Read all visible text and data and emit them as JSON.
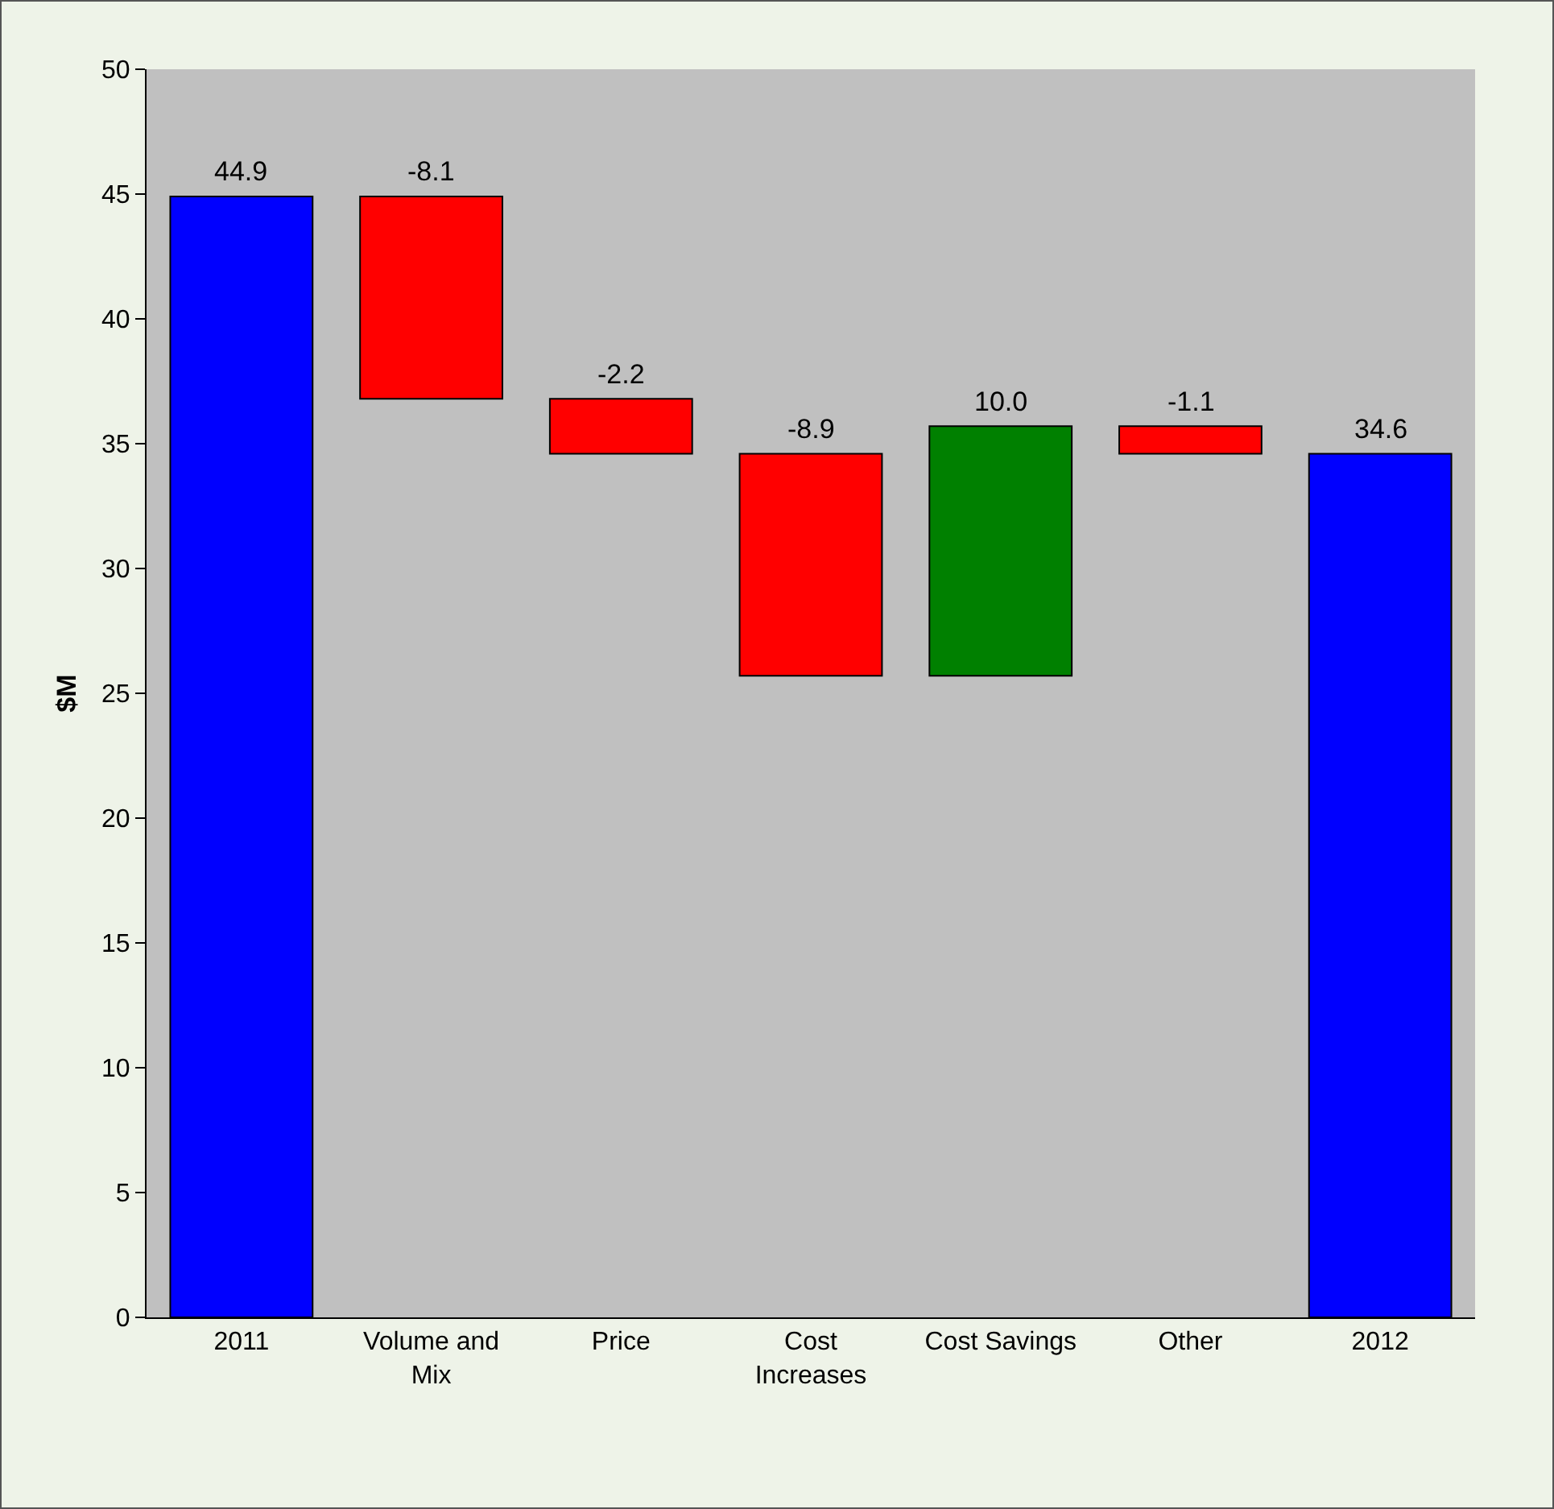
{
  "chart_data": {
    "type": "bar",
    "categories": [
      "2011",
      "Volume and Mix",
      "Price",
      "Cost Increases",
      "Cost Savings",
      "Other",
      "2012"
    ],
    "values": [
      44.9,
      -8.1,
      -2.2,
      -8.9,
      10.0,
      -1.1,
      34.6
    ],
    "base": [
      0,
      44.9,
      36.8,
      34.6,
      25.7,
      35.7,
      0
    ],
    "colors": [
      "#0000ff",
      "#ff0000",
      "#ff0000",
      "#ff0000",
      "#008000",
      "#ff0000",
      "#0000ff"
    ],
    "value_labels": [
      "44.9",
      "-8.1",
      "-2.2",
      "-8.9",
      "10.0",
      "-1.1",
      "34.6"
    ],
    "ylabel": "$M",
    "ylim": [
      0,
      50
    ],
    "yticks": [
      0,
      5,
      10,
      15,
      20,
      25,
      30,
      35,
      40,
      45,
      50
    ],
    "grid": false
  }
}
